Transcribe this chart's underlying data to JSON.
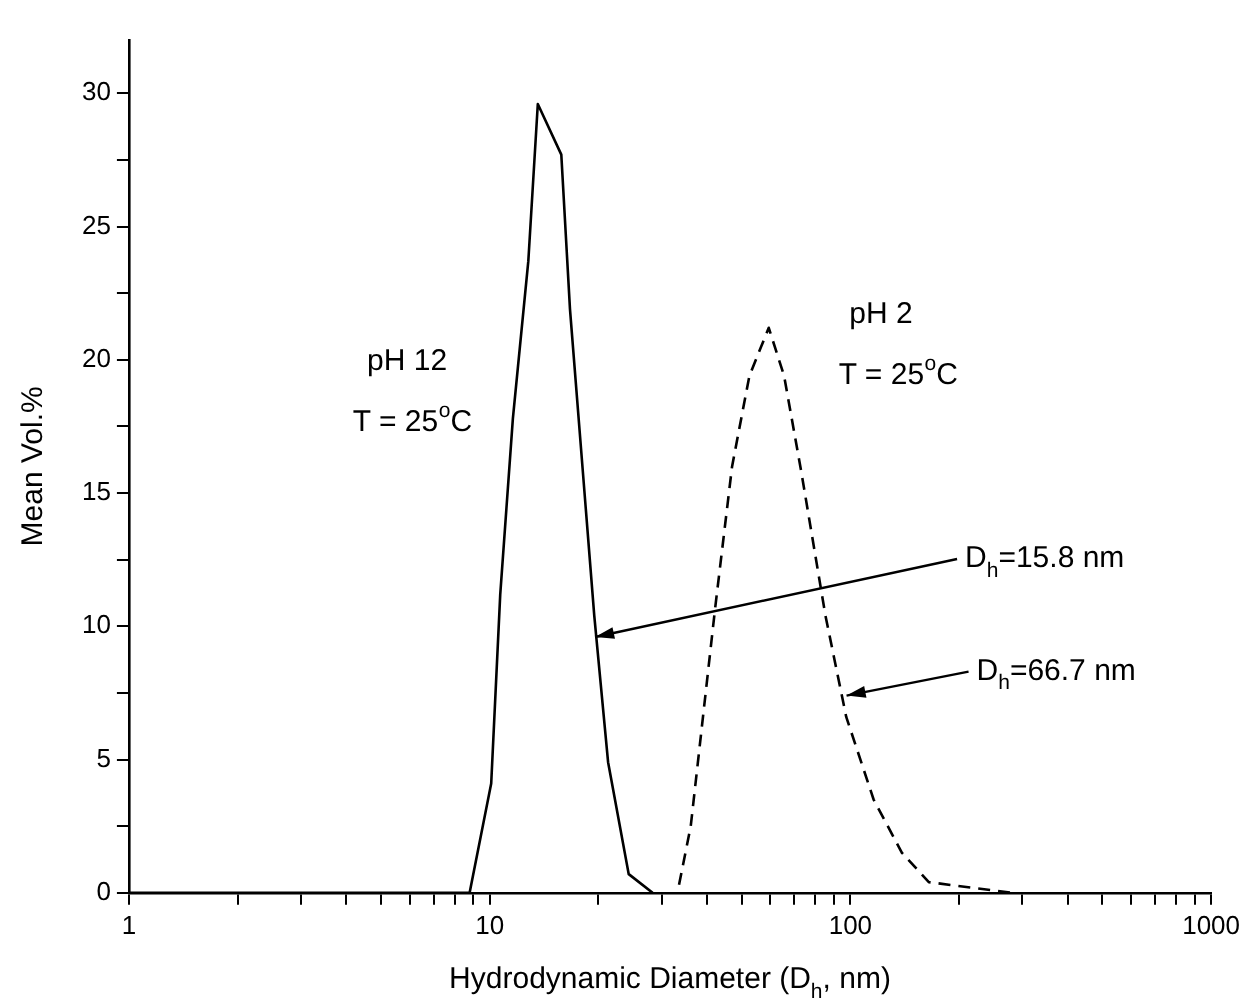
{
  "chart_data": {
    "type": "line",
    "xlabel": "Hydrodynamic Diameter (D$_{h}$, nm)",
    "ylabel": "Mean Vol.%",
    "log": "x",
    "grid": false,
    "legend": false,
    "marker": "none",
    "xlim": [
      1,
      1000
    ],
    "xticks": [
      1,
      {
        "value": 2,
        "label": null
      },
      {
        "value": 3,
        "label": null
      },
      {
        "value": 4,
        "label": null
      },
      {
        "value": 5,
        "label": null
      },
      {
        "value": 6,
        "label": null
      },
      {
        "value": 7,
        "label": null
      },
      {
        "value": 8,
        "label": null
      },
      {
        "value": 9,
        "label": null
      },
      10,
      {
        "value": 20,
        "label": null
      },
      {
        "value": 30,
        "label": null
      },
      {
        "value": 40,
        "label": null
      },
      {
        "value": 50,
        "label": null
      },
      {
        "value": 60,
        "label": null
      },
      {
        "value": 70,
        "label": null
      },
      {
        "value": 80,
        "label": null
      },
      {
        "value": 90,
        "label": null
      },
      100,
      {
        "value": 200,
        "label": null
      },
      {
        "value": 300,
        "label": null
      },
      {
        "value": 400,
        "label": null
      },
      {
        "value": 500,
        "label": null
      },
      {
        "value": 600,
        "label": null
      },
      {
        "value": 700,
        "label": null
      },
      {
        "value": 800,
        "label": null
      },
      {
        "value": 900,
        "label": null
      },
      1000
    ],
    "ylim": [
      0,
      32
    ],
    "yticks": [
      0,
      {
        "value": 2.5,
        "label": null
      },
      5,
      {
        "value": 7.5,
        "label": null
      },
      10,
      {
        "value": 12.5,
        "label": null
      },
      15,
      {
        "value": 17.5,
        "label": null
      },
      20,
      {
        "value": 22.5,
        "label": null
      },
      25,
      {
        "value": 27.5,
        "label": null
      },
      30
    ],
    "series": [
      {
        "color": "#000000",
        "line_style": "solid",
        "x": [
          1,
          8.8,
          10.1,
          10.7,
          11.6,
          12.8,
          13.6,
          15.8,
          16.7,
          19.5,
          21.3,
          24.3,
          28.3
        ],
        "values": [
          0,
          0,
          4.1,
          11.2,
          17.8,
          23.7,
          29.6,
          27.7,
          21.9,
          10.4,
          4.9,
          0.7,
          0
        ]
      },
      {
        "color": "#000000",
        "line_style": "dashed",
        "x": [
          33.5,
          36.1,
          42.2,
          47,
          52.5,
          59.4,
          65.5,
          73.1,
          85.3,
          97.4,
          116,
          139,
          165,
          215,
          281
        ],
        "values": [
          0.3,
          2.5,
          10.7,
          16,
          19.4,
          21.2,
          19.4,
          15.8,
          10.4,
          6.6,
          3.5,
          1.5,
          0.4,
          0.2,
          0
        ]
      }
    ],
    "annotations": [
      "pH 12",
      "T = 25$^{o}$C",
      "pH 2",
      "T = 25$^{o}$C",
      {
        "text": "D$_{h}$=15.8 nm",
        "x": 19.6,
        "y": 9.6
      },
      {
        "text": "D$_{h}$=66.7 nm",
        "x": 97.6,
        "y": 7.4
      }
    ]
  }
}
